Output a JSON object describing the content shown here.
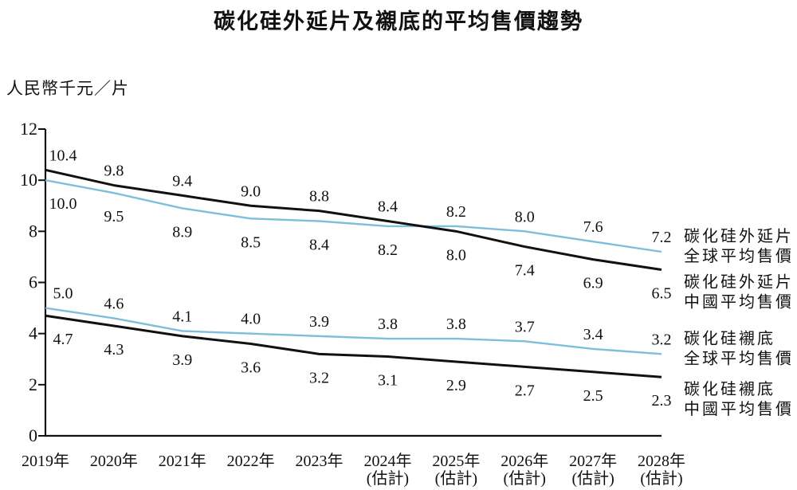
{
  "chart_data": {
    "type": "line",
    "title": "碳化硅外延片及襯底的平均售價趨勢",
    "ylabel": "人民幣千元／片",
    "ylim": [
      0,
      12
    ],
    "yticks": [
      "0",
      "2",
      "4",
      "6",
      "8",
      "10",
      "12"
    ],
    "grid": false,
    "legend_position": "right",
    "x": [
      "2019年",
      "2020年",
      "2021年",
      "2022年",
      "2023年",
      "2024年",
      "2025年",
      "2026年",
      "2027年",
      "2028年"
    ],
    "x_notes": [
      "",
      "",
      "",
      "",
      "",
      "(估計)",
      "(估計)",
      "(估計)",
      "(估計)",
      "(估計)"
    ],
    "series": [
      {
        "id": "epi-global",
        "name": "碳化硅外延片全球平均售價",
        "legend_lines": [
          "碳化硅外延片",
          "全球平均售價"
        ],
        "legend_valign": "middle",
        "color": "#7FBEDB",
        "values": [
          10.0,
          9.5,
          8.9,
          8.5,
          8.4,
          8.2,
          8.2,
          8.0,
          7.6,
          7.2
        ],
        "labels": [
          "10.0",
          "9.5",
          "8.9",
          "8.5",
          "8.4",
          "8.2",
          "8.2",
          "8.0",
          "7.6",
          "7.2"
        ],
        "label_side": [
          "below",
          "below",
          "below",
          "below",
          "below",
          "below",
          "above",
          "above",
          "above",
          "above"
        ]
      },
      {
        "id": "epi-china",
        "name": "碳化硅外延片中國平均售價",
        "legend_lines": [
          "碳化硅外延片",
          "中國平均售價"
        ],
        "legend_valign": "below",
        "color": "#111111",
        "values": [
          10.4,
          9.8,
          9.4,
          9.0,
          8.8,
          8.4,
          8.0,
          7.4,
          6.9,
          6.5
        ],
        "labels": [
          "10.4",
          "9.8",
          "9.4",
          "9.0",
          "8.8",
          "8.4",
          "8.0",
          "7.4",
          "6.9",
          "6.5"
        ],
        "label_side": [
          "above",
          "above",
          "above",
          "above",
          "above",
          "above",
          "below",
          "below",
          "below",
          "below"
        ]
      },
      {
        "id": "sub-global",
        "name": "碳化硅襯底全球平均售價",
        "legend_lines": [
          "碳化硅襯底",
          "全球平均售價"
        ],
        "legend_valign": "middle",
        "color": "#7FBEDB",
        "values": [
          5.0,
          4.6,
          4.1,
          4.0,
          3.9,
          3.8,
          3.8,
          3.7,
          3.4,
          3.2
        ],
        "labels": [
          "5.0",
          "4.6",
          "4.1",
          "4.0",
          "3.9",
          "3.8",
          "3.8",
          "3.7",
          "3.4",
          "3.2"
        ],
        "label_side": [
          "above",
          "above",
          "above",
          "above",
          "above",
          "above",
          "above",
          "above",
          "above",
          "above"
        ]
      },
      {
        "id": "sub-china",
        "name": "碳化硅襯底中國平均售價",
        "legend_lines": [
          "碳化硅襯底",
          "中國平均售價"
        ],
        "legend_valign": "below",
        "color": "#111111",
        "values": [
          4.7,
          4.3,
          3.9,
          3.6,
          3.2,
          3.1,
          2.9,
          2.7,
          2.5,
          2.3
        ],
        "labels": [
          "4.7",
          "4.3",
          "3.9",
          "3.6",
          "3.2",
          "3.1",
          "2.9",
          "2.7",
          "2.5",
          "2.3"
        ],
        "label_side": [
          "below",
          "below",
          "below",
          "below",
          "below",
          "below",
          "below",
          "below",
          "below",
          "below"
        ]
      }
    ]
  },
  "colors": {
    "axis": "#111111",
    "label_text": "#111111",
    "global_series_blue": "#7FBEDB",
    "china_series_black": "#111111"
  }
}
